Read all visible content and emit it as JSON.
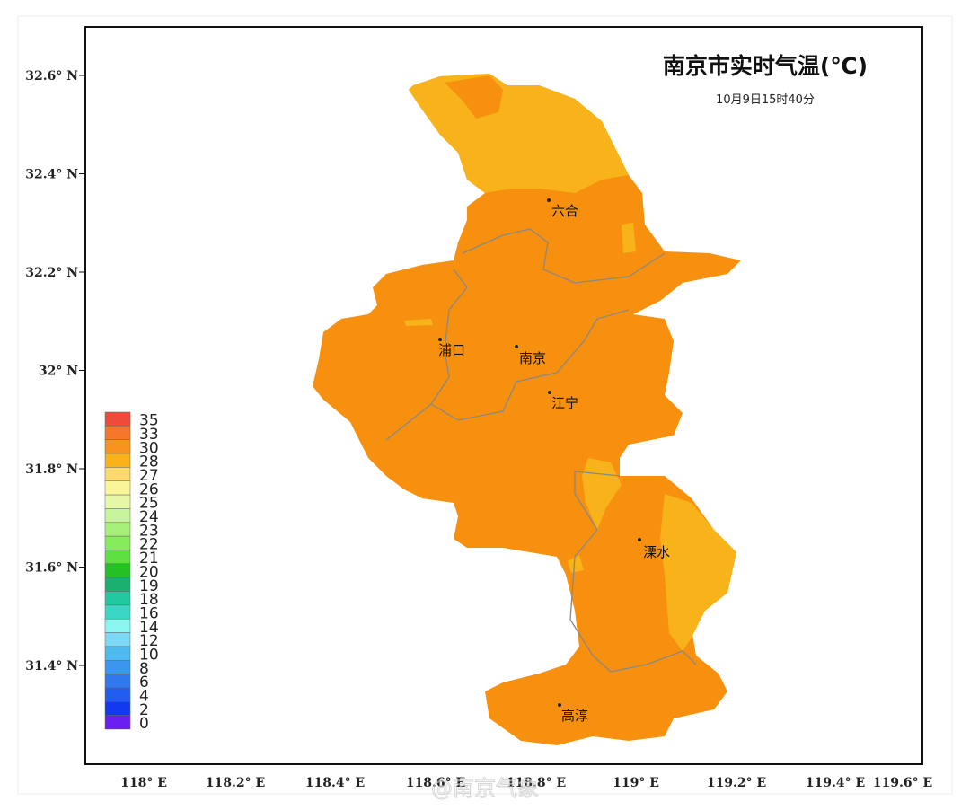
{
  "title": "南京市实时气温(℃)",
  "subtitle": "10月9日15时40分",
  "axes": {
    "y_labels": [
      "32.6° N",
      "32.4° N",
      "32.2° N",
      "32° N",
      "31.8° N",
      "31.6° N",
      "31.4° N"
    ],
    "x_labels": [
      "118° E",
      "118.2° E",
      "118.4° E",
      "118.6° E",
      "118.8° E",
      "119° E",
      "119.2° E",
      "119.4° E",
      "119.6° E"
    ]
  },
  "legend": {
    "levels": [
      {
        "value": 35,
        "color": "#f04b3a"
      },
      {
        "value": 33,
        "color": "#f5782a"
      },
      {
        "value": 30,
        "color": "#f7931e"
      },
      {
        "value": 28,
        "color": "#f9b31a"
      },
      {
        "value": 27,
        "color": "#fbd96e"
      },
      {
        "value": 26,
        "color": "#fbf59a"
      },
      {
        "value": 25,
        "color": "#e6f8a6"
      },
      {
        "value": 24,
        "color": "#c8f59a"
      },
      {
        "value": 23,
        "color": "#a6f07a"
      },
      {
        "value": 22,
        "color": "#86ec5a"
      },
      {
        "value": 21,
        "color": "#5ee040"
      },
      {
        "value": 20,
        "color": "#25c025"
      },
      {
        "value": 19,
        "color": "#1bb070"
      },
      {
        "value": 18,
        "color": "#22c8a0"
      },
      {
        "value": 16,
        "color": "#3ad8c4"
      },
      {
        "value": 14,
        "color": "#8af6f0"
      },
      {
        "value": 12,
        "color": "#7dd8f6"
      },
      {
        "value": 10,
        "color": "#4dbaf0"
      },
      {
        "value": 8,
        "color": "#3c96f0"
      },
      {
        "value": 6,
        "color": "#2f78ee"
      },
      {
        "value": 4,
        "color": "#1f5ef0"
      },
      {
        "value": 2,
        "color": "#1238f0"
      },
      {
        "value": 0,
        "color": "#6a1ef0"
      }
    ]
  },
  "cities": [
    "六合",
    "浦口",
    "南京",
    "江宁",
    "溧水",
    "高淳"
  ],
  "watermark": "@南京气象"
}
